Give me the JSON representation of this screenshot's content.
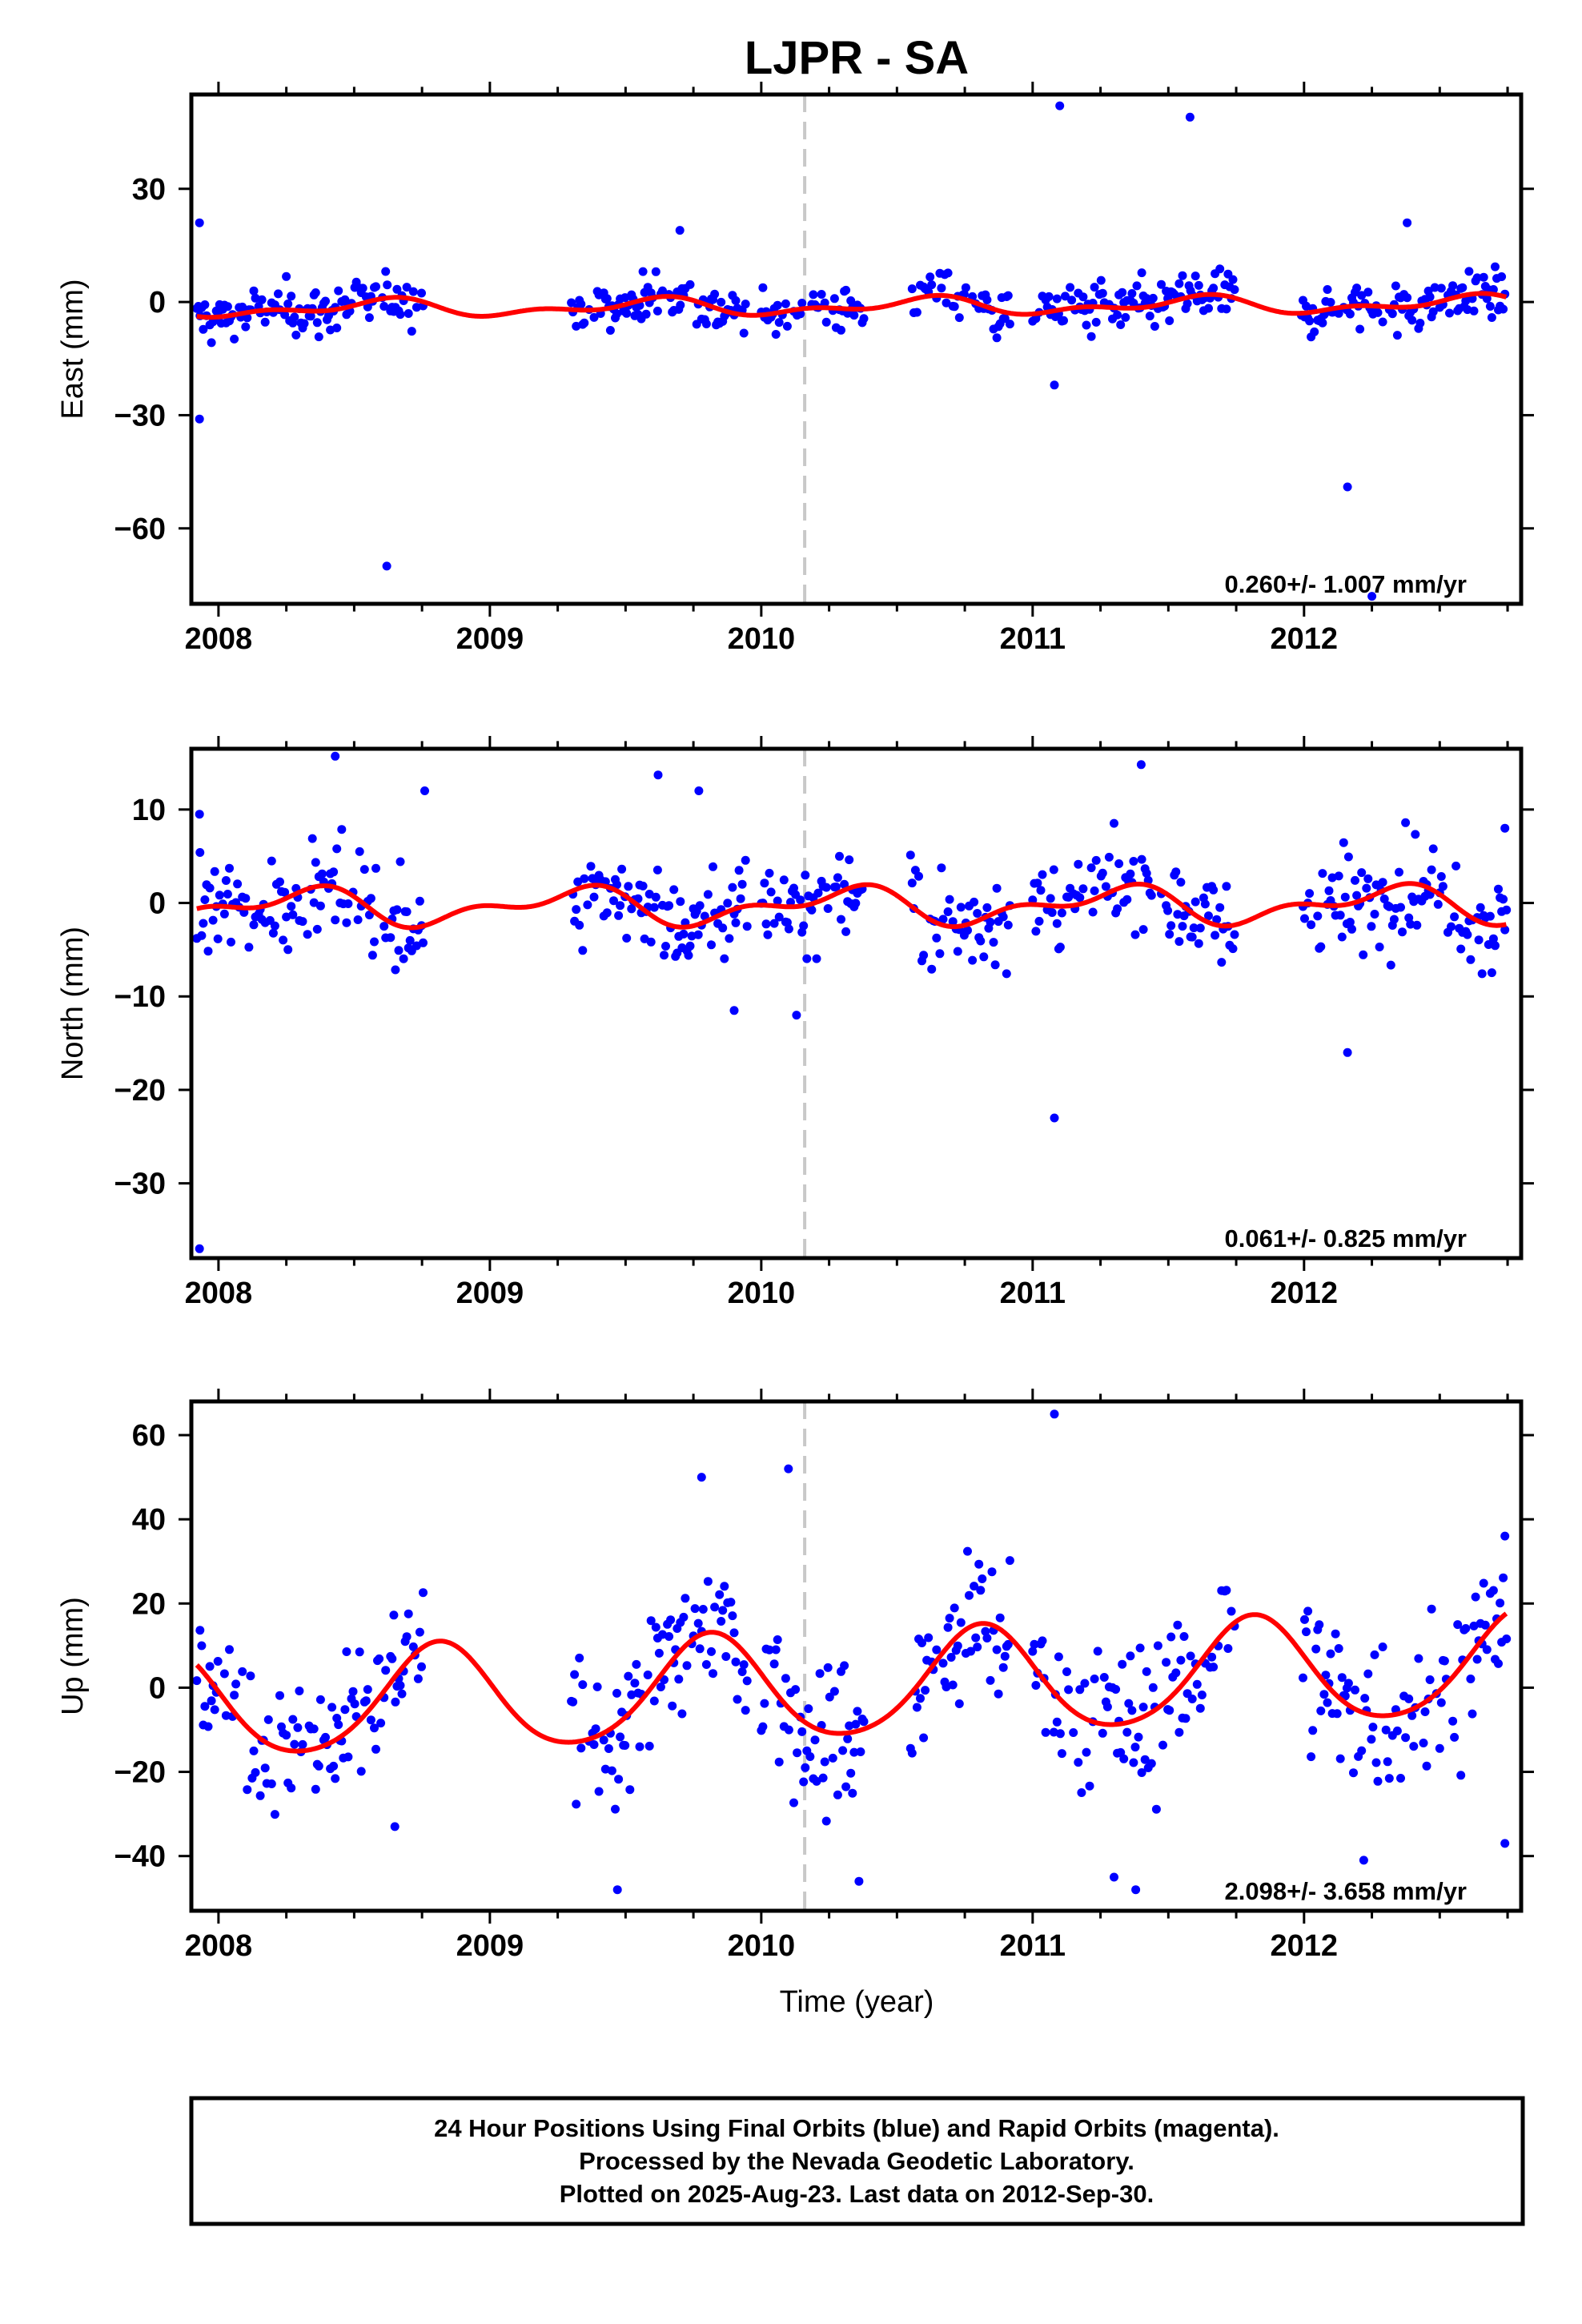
{
  "chart_data": {
    "type": "scatter",
    "title": "LJPR - SA",
    "xlabel": "Time (year)",
    "x_ticks": [
      "2008",
      "2009",
      "2010",
      "2011",
      "2012"
    ],
    "xlim": [
      2007.9,
      2012.8
    ],
    "event_marker_year": 2010.16,
    "colors": {
      "points": "#0000ff",
      "fit": "#ff0000",
      "event_line": "#c8c8c8",
      "frame": "#000000"
    },
    "panels": [
      {
        "name": "east",
        "ylabel": "East (mm)",
        "ylim": [
          -80,
          55
        ],
        "yticks": [
          30,
          0,
          -30,
          -60
        ],
        "ytick_labels": [
          "30",
          "0",
          "−30",
          "−60"
        ],
        "rate": "0.260+/- 1.007 mm/yr",
        "fit": {
          "offset": -1.2,
          "rate": 0.26,
          "ann_amp": 1.8,
          "ann_phase": 0.35,
          "semi_amp": 1.2,
          "semi_phase": 0.55
        },
        "scatter": 3.2,
        "outliers": [
          [
            2007.93,
            21
          ],
          [
            2007.93,
            -31
          ],
          [
            2008.62,
            -70
          ],
          [
            2009.7,
            19
          ],
          [
            2011.1,
            52
          ],
          [
            2011.58,
            49
          ],
          [
            2011.08,
            -22
          ],
          [
            2012.16,
            -49
          ],
          [
            2012.38,
            21
          ],
          [
            2012.25,
            -78
          ]
        ]
      },
      {
        "name": "north",
        "ylabel": "North (mm)",
        "ylim": [
          -38,
          16.5
        ],
        "yticks": [
          10,
          0,
          -10,
          -20,
          -30
        ],
        "ytick_labels": [
          "10",
          "0",
          "−10",
          "−20",
          "−30"
        ],
        "rate": "0.061+/- 0.825 mm/yr",
        "fit": {
          "offset": -0.3,
          "rate": 0.061,
          "ann_amp": 1.6,
          "ann_phase": 0.05,
          "semi_amp": 1.0,
          "semi_phase": 0.3
        },
        "scatter": 2.6,
        "outliers": [
          [
            2007.93,
            9.5
          ],
          [
            2007.93,
            -37
          ],
          [
            2008.43,
            15.7
          ],
          [
            2008.76,
            12
          ],
          [
            2009.62,
            13.7
          ],
          [
            2009.77,
            12
          ],
          [
            2009.9,
            -11.5
          ],
          [
            2010.13,
            -12
          ],
          [
            2011.08,
            -23
          ],
          [
            2011.4,
            14.8
          ],
          [
            2012.16,
            -16
          ],
          [
            2012.74,
            8
          ]
        ]
      },
      {
        "name": "up",
        "ylabel": "Up (mm)",
        "ylim": [
          -53,
          68
        ],
        "yticks": [
          60,
          40,
          20,
          0,
          -20,
          -40
        ],
        "ytick_labels": [
          "60",
          "40",
          "20",
          "0",
          "−20",
          "−40"
        ],
        "rate": "2.098+/- 3.658 mm/yr",
        "fit": {
          "offset": 0.2,
          "rate": 2.098,
          "ann_amp": 12.5,
          "ann_phase": 0.56,
          "semi_amp": 1.5,
          "semi_phase": 0.2
        },
        "scatter": 9.5,
        "outliers": [
          [
            2008.65,
            -33
          ],
          [
            2009.47,
            -48
          ],
          [
            2009.78,
            50
          ],
          [
            2010.1,
            52
          ],
          [
            2010.36,
            -46
          ],
          [
            2011.08,
            65
          ],
          [
            2011.3,
            -45
          ],
          [
            2011.38,
            -48
          ],
          [
            2012.22,
            -41
          ],
          [
            2012.74,
            -37
          ]
        ]
      }
    ],
    "segments": [
      [
        2007.92,
        2008.76
      ],
      [
        2009.3,
        2009.95
      ],
      [
        2010.0,
        2010.38
      ],
      [
        2010.55,
        2010.92
      ],
      [
        2011.0,
        2011.75
      ],
      [
        2011.99,
        2012.75
      ]
    ]
  },
  "footer": {
    "line1": "24 Hour Positions Using Final Orbits (blue) and Rapid Orbits (magenta).",
    "line2": "Processed by the Nevada Geodetic Laboratory.",
    "line3": "Plotted on 2025-Aug-23. Last data on 2012-Sep-30."
  }
}
